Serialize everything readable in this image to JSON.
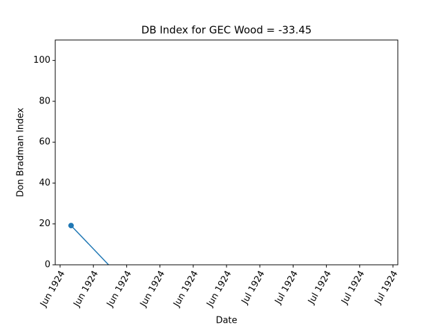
{
  "chart_data": {
    "type": "line",
    "title": "DB Index for GEC Wood = -33.45",
    "x_label": "Date",
    "y_label": "Don Bradman Index",
    "x": [
      0.33,
      3.42
    ],
    "series": [
      {
        "color": "#1f77b4",
        "values": [
          19.2,
          -33.45
        ]
      }
    ],
    "xlim": [
      -0.145,
      10.145
    ],
    "xticks": [
      {
        "value": 0,
        "label": "Jun 1924"
      },
      {
        "value": 1,
        "label": "Jun 1924"
      },
      {
        "value": 2,
        "label": "Jun 1924"
      },
      {
        "value": 3,
        "label": "Jun 1924"
      },
      {
        "value": 4,
        "label": "Jun 1924"
      },
      {
        "value": 5,
        "label": "Jun 1924"
      },
      {
        "value": 6,
        "label": "Jul 1924"
      },
      {
        "value": 7,
        "label": "Jul 1924"
      },
      {
        "value": 8,
        "label": "Jul 1924"
      },
      {
        "value": 9,
        "label": "Jul 1924"
      },
      {
        "value": 10,
        "label": "Jul 1924"
      }
    ],
    "ylim": [
      0,
      110
    ],
    "yticks": [
      0,
      20,
      40,
      60,
      80,
      100
    ],
    "grid": false
  }
}
